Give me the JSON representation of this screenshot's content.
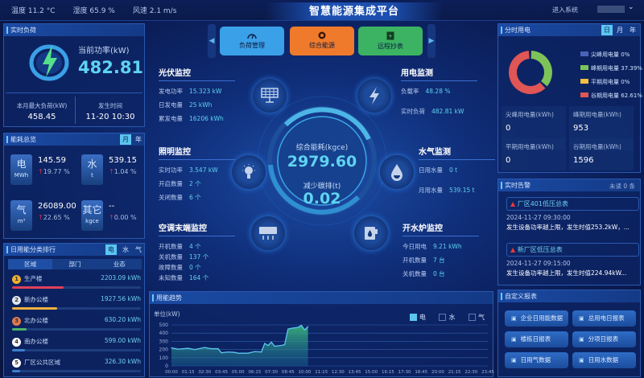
{
  "header": {
    "weather": [
      "温度 11.2 °C",
      "湿度 65.9 %",
      "风速 2.1 m/s"
    ],
    "title": "智慧能源集成平台",
    "enter_system": "进入系统",
    "user_caret": "⌄"
  },
  "nav": {
    "buttons": [
      {
        "label": "负荷管理",
        "icon": "gauge-icon",
        "color": "#3aa0e8"
      },
      {
        "label": "综合能源",
        "icon": "energy-icon",
        "color": "#f07a2c"
      },
      {
        "label": "远程抄表",
        "icon": "meter-icon",
        "color": "#3cb362"
      }
    ]
  },
  "realtime_load": {
    "title": "实时负荷",
    "power_label": "当前功率(kW)",
    "power_value": "482.81",
    "max_label": "本月最大负荷(kW)",
    "max_value": "458.45",
    "time_label": "发生时间",
    "time_value": "11-20 10:30"
  },
  "consumption": {
    "title": "能耗总览",
    "toggles": [
      "月",
      "年"
    ],
    "items": [
      {
        "name": "电",
        "unit": "MWh",
        "value": "145.59",
        "pct": "19.77 %"
      },
      {
        "name": "水",
        "unit": "t",
        "value": "539.15",
        "pct": "1.04 %"
      },
      {
        "name": "气",
        "unit": "m³",
        "value": "26089.00",
        "pct": "22.65 %"
      },
      {
        "name": "其它",
        "unit": "kgce",
        "value": "--",
        "pct": "0.00 %"
      }
    ]
  },
  "ranking": {
    "title": "日用能分类排行",
    "toggles": [
      "电",
      "水",
      "气"
    ],
    "tabs": [
      "区域",
      "部门",
      "业态"
    ],
    "items": [
      {
        "rank": "1",
        "name": "生产楼",
        "value": "2203.09 kWh",
        "fraction": 0.4,
        "color": "#e0405a",
        "badge": "#f0b030"
      },
      {
        "rank": "2",
        "name": "新办公楼",
        "value": "1927.56 kWh",
        "fraction": 0.35,
        "color": "#f0b040",
        "badge": "#dfe6ef"
      },
      {
        "rank": "3",
        "name": "北办公楼",
        "value": "630.20 kWh",
        "fraction": 0.11,
        "color": "#4cb36a",
        "badge": "#e07a50"
      },
      {
        "rank": "4",
        "name": "南办公楼",
        "value": "599.00 kWh",
        "fraction": 0.1,
        "color": "#3d7fd0",
        "badge": "#ffffff"
      },
      {
        "rank": "5",
        "name": "厂区公共区域",
        "value": "326.30 kWh",
        "fraction": 0.06,
        "color": "#3d7fd0",
        "badge": "#ffffff"
      }
    ]
  },
  "center": {
    "gauge": {
      "energy_label": "综合能耗(kgce)",
      "energy_value": "2979.60",
      "carbon_label": "减少碳排(t)",
      "carbon_value": "0.02"
    },
    "pv": {
      "title": "光伏监控",
      "rows": [
        [
          "发电功率",
          "15.323 kW"
        ],
        [
          "日发电量",
          "25 kWh"
        ],
        [
          "累发电量",
          "16206 kWh"
        ]
      ]
    },
    "power": {
      "title": "用电监测",
      "rows": [
        [
          "负载率",
          "48.28 %"
        ],
        [
          "实时负荷",
          "482.81 kW"
        ]
      ]
    },
    "lighting": {
      "title": "照明监控",
      "rows": [
        [
          "实时功率",
          "3.547 kW"
        ],
        [
          "开启数量",
          "2 个"
        ],
        [
          "关闭数量",
          "6 个"
        ]
      ]
    },
    "water": {
      "title": "水气监测",
      "rows": [
        [
          "日用水量",
          "0 t"
        ],
        [
          "月用水量",
          "539.15 t"
        ]
      ]
    },
    "ac": {
      "title": "空调末端监控",
      "rows": [
        [
          "开机数量",
          "4 个"
        ],
        [
          "关机数量",
          "137 个"
        ],
        [
          "故障数量",
          "0 个"
        ],
        [
          "未知数量",
          "164 个"
        ]
      ]
    },
    "boiler": {
      "title": "开水炉监控",
      "rows": [
        [
          "今日用电",
          "9.21 kWh"
        ],
        [
          "开机数量",
          "7 台"
        ],
        [
          "关机数量",
          "0 台"
        ]
      ]
    }
  },
  "tou": {
    "title": "分时用电",
    "toggles": [
      "日",
      "月",
      "年"
    ],
    "legend": [
      {
        "label": "尖峰用电量",
        "pct": "0%",
        "value": 0,
        "color": "#4a62b8"
      },
      {
        "label": "峰期用电量",
        "pct": "37.39%",
        "value": 37.39,
        "color": "#7dc35a"
      },
      {
        "label": "平期用电量",
        "pct": "0%",
        "value": 0,
        "color": "#f0c040"
      },
      {
        "label": "谷期用电量",
        "pct": "62.61%",
        "value": 62.61,
        "color": "#e05555"
      }
    ],
    "stats": [
      {
        "label": "尖峰用电量(kWh)",
        "value": "0"
      },
      {
        "label": "峰期用电量(kWh)",
        "value": "953"
      },
      {
        "label": "平期用电量(kWh)",
        "value": "0"
      },
      {
        "label": "谷期用电量(kWh)",
        "value": "1596"
      }
    ]
  },
  "alarms": {
    "title": "实时告警",
    "unread": "未读 0 条",
    "items": [
      {
        "source": "厂区401低压总表",
        "time": "2024-11-27 09:30:00",
        "desc": "发生设备功率越上限，发生时值253.2kW，..."
      },
      {
        "source": "新厂区低压总表",
        "time": "2024-11-27 09:15:00",
        "desc": "发生设备功率越上限，发生时值224.94kW..."
      }
    ]
  },
  "reports": {
    "title": "自定义报表",
    "buttons": [
      "企业日用能数据",
      "总用电日报表",
      "楼栋日报表",
      "分项日报表",
      "日用气数据",
      "日用水数据"
    ]
  },
  "trend": {
    "title": "用能趋势",
    "legend": [
      {
        "label": "电",
        "checked": true
      },
      {
        "label": "水",
        "checked": false
      },
      {
        "label": "气",
        "checked": false
      }
    ]
  },
  "chart_data": {
    "type": "area",
    "ylabel": "单位(kW)",
    "ylim": [
      0,
      500
    ],
    "yticks": [
      0,
      100,
      200,
      300,
      400,
      500
    ],
    "xticks": [
      "00:00",
      "01:15",
      "02:30",
      "03:45",
      "05:00",
      "06:15",
      "07:30",
      "08:45",
      "10:00",
      "11:15",
      "12:30",
      "13:45",
      "15:00",
      "16:15",
      "17:30",
      "18:45",
      "20:00",
      "21:15",
      "22:30",
      "23:45"
    ],
    "series": [
      {
        "name": "电",
        "color": "#5cc6ef",
        "x": [
          "00:00",
          "00:30",
          "01:15",
          "01:45",
          "02:30",
          "03:00",
          "03:30",
          "03:45",
          "04:15",
          "04:45",
          "05:00",
          "05:45",
          "06:15",
          "06:45",
          "07:00",
          "07:15",
          "07:30",
          "07:45",
          "08:15",
          "08:30",
          "08:45",
          "09:00",
          "09:30",
          "09:45",
          "10:00",
          "10:15"
        ],
        "y": [
          220,
          205,
          215,
          200,
          225,
          210,
          210,
          160,
          170,
          165,
          155,
          155,
          175,
          170,
          275,
          250,
          290,
          240,
          250,
          260,
          450,
          460,
          470,
          495,
          440,
          480
        ]
      }
    ]
  }
}
